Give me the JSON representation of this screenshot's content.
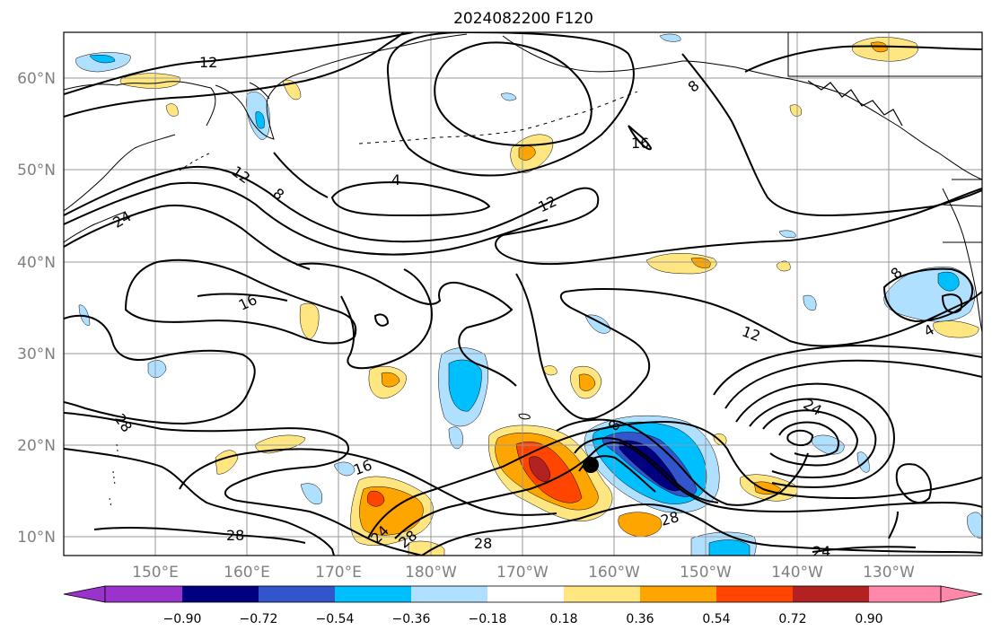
{
  "title": "2024082200 F120",
  "lat_labels": [
    "60°N",
    "50°N",
    "40°N",
    "30°N",
    "20°N",
    "10°N"
  ],
  "lon_labels": [
    "150°E",
    "160°E",
    "170°E",
    "180°W",
    "170°W",
    "160°W",
    "150°W",
    "140°W",
    "130°W"
  ],
  "contour_labels": [
    "12",
    "12",
    "8",
    "24",
    "4",
    "8",
    "16",
    "12",
    "16",
    "8",
    "12",
    "28",
    "16",
    "24",
    "28",
    "28",
    "24",
    "28",
    "28",
    "24",
    "8",
    "4"
  ],
  "colorbar": {
    "tick_labels": [
      "−0.90",
      "−0.72",
      "−0.54",
      "−0.36",
      "−0.18",
      "0.18",
      "0.36",
      "0.54",
      "0.72",
      "0.90"
    ],
    "colors": [
      "#9933cc",
      "#000080",
      "#3355cc",
      "#00bfff",
      "#b0e0ff",
      "#ffffff",
      "#ffe680",
      "#ffa500",
      "#ff4500",
      "#b22222",
      "#ff88aa"
    ]
  },
  "palette": {
    "land_line": "#000000",
    "grid": "#999999",
    "contour": "#000000"
  },
  "marker": {
    "type": "storm-center-dot",
    "color": "#000000"
  }
}
